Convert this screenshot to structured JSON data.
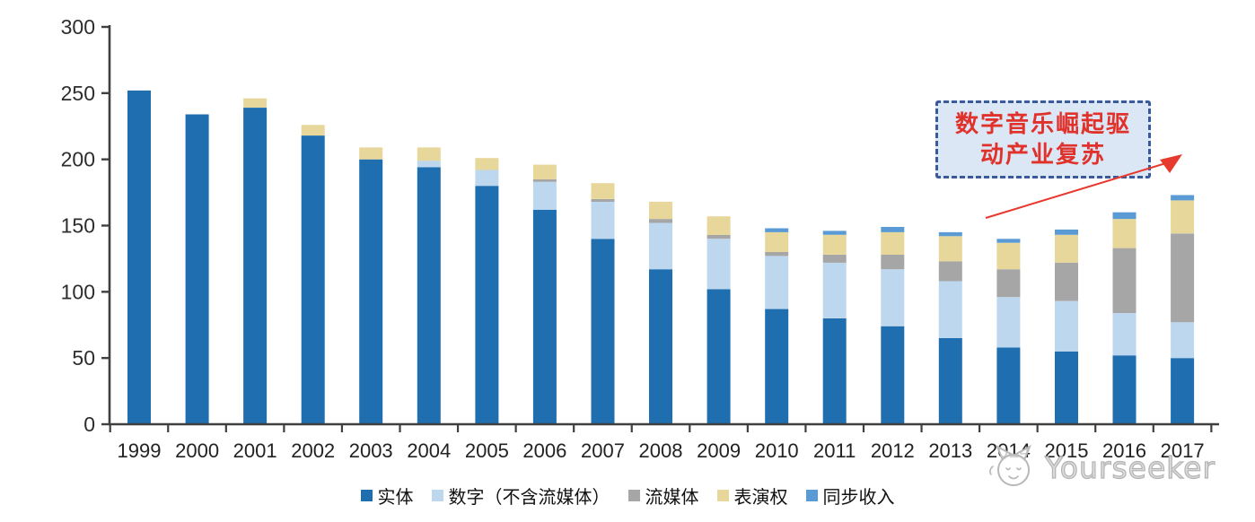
{
  "chart_data": {
    "type": "bar",
    "stacked": true,
    "title": "",
    "xlabel": "",
    "ylabel": "",
    "ylim": [
      0,
      300
    ],
    "yticks": [
      0,
      50,
      100,
      150,
      200,
      250,
      300
    ],
    "grid": false,
    "legend_position": "bottom",
    "axis_color": "#3f3f3f",
    "categories": [
      "1999",
      "2000",
      "2001",
      "2002",
      "2003",
      "2004",
      "2005",
      "2006",
      "2007",
      "2008",
      "2009",
      "2010",
      "2011",
      "2012",
      "2013",
      "2014",
      "2015",
      "2016",
      "2017"
    ],
    "series": [
      {
        "name": "实体",
        "color": "#1f6eb0",
        "values": [
          252,
          234,
          239,
          218,
          200,
          194,
          180,
          162,
          140,
          117,
          102,
          87,
          80,
          74,
          65,
          58,
          55,
          52,
          50
        ]
      },
      {
        "name": "数字（不含流媒体）",
        "color": "#bdd7ee",
        "values": [
          0,
          0,
          0,
          0,
          0,
          5,
          12,
          21,
          28,
          35,
          38,
          40,
          42,
          43,
          43,
          38,
          38,
          32,
          27
        ]
      },
      {
        "name": "流媒体",
        "color": "#a6a6a6",
        "values": [
          0,
          0,
          0,
          0,
          0,
          0,
          0,
          2,
          2,
          3,
          3,
          3,
          6,
          11,
          15,
          21,
          29,
          49,
          67
        ]
      },
      {
        "name": "表演权",
        "color": "#e7d79a",
        "values": [
          0,
          0,
          7,
          8,
          9,
          10,
          9,
          11,
          12,
          13,
          14,
          15,
          15,
          17,
          19,
          20,
          21,
          22,
          25
        ]
      },
      {
        "name": "同步收入",
        "color": "#5b9bd5",
        "values": [
          0,
          0,
          0,
          0,
          0,
          0,
          0,
          0,
          0,
          0,
          0,
          3,
          3,
          4,
          3,
          3,
          4,
          5,
          4
        ]
      }
    ]
  },
  "annotation": {
    "line1": "数字音乐崛起驱",
    "line2": "动产业复苏",
    "text_color": "#e0312b",
    "border_color": "#3a5a9b",
    "fill_color": "#dbe7f5",
    "arrow_color": "#e8392f"
  },
  "watermark": {
    "text": "Yourseeker",
    "logo_icon": "cat-doodle-icon",
    "color": "#b3b3b3"
  }
}
